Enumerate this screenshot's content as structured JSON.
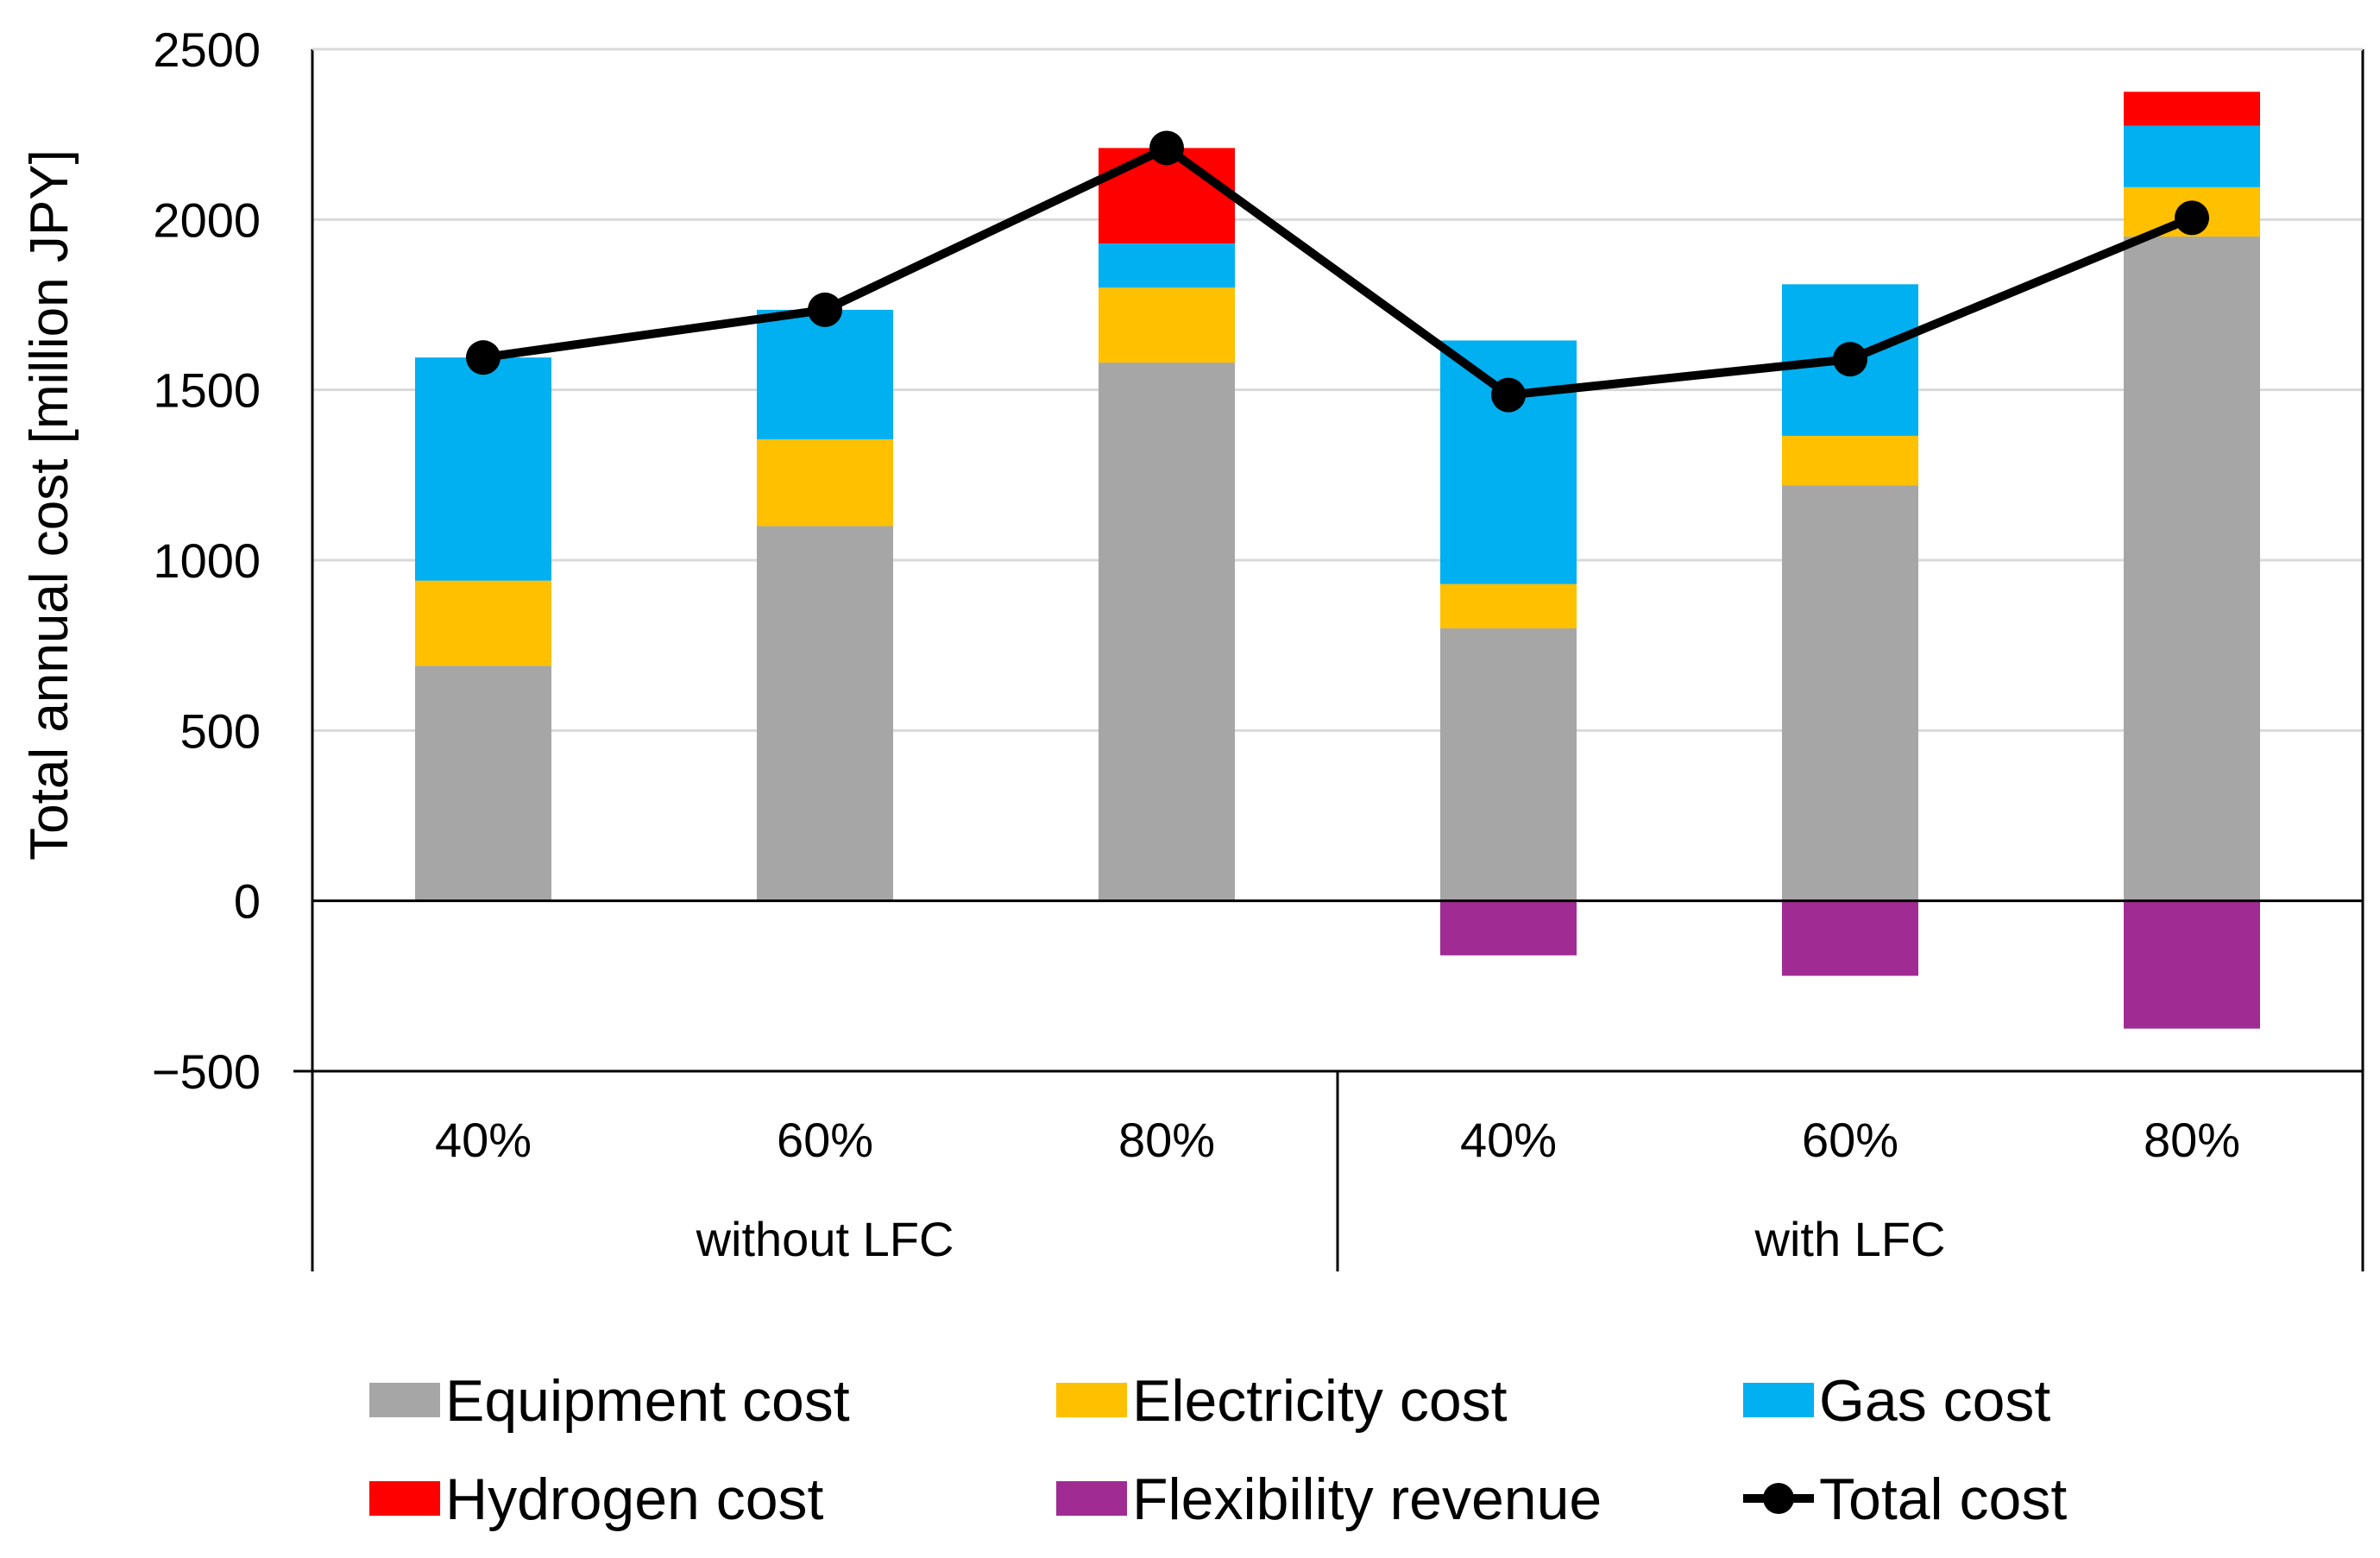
{
  "chart_data": {
    "type": "bar",
    "subtype": "stacked-bar-with-line",
    "title": "",
    "ylabel": "Total annual cost [million JPY]",
    "xlabel": "",
    "ylim": [
      -500,
      2500
    ],
    "yticks": [
      -500,
      0,
      500,
      1000,
      1500,
      2000,
      2500
    ],
    "ytick_labels": [
      "−500",
      "0",
      "500",
      "1000",
      "1500",
      "2000",
      "2500"
    ],
    "grid": true,
    "categories": [
      "40%",
      "60%",
      "80%",
      "40%",
      "60%",
      "80%"
    ],
    "groups": [
      {
        "label": "without LFC",
        "categories": [
          0,
          1,
          2
        ]
      },
      {
        "label": "with LFC",
        "categories": [
          3,
          4,
          5
        ]
      }
    ],
    "series": [
      {
        "name": "Equipment cost",
        "key": "equipment",
        "color": "#A6A6A6",
        "values": [
          690,
          1100,
          1580,
          800,
          1220,
          1950
        ]
      },
      {
        "name": "Electricity cost",
        "key": "electricity",
        "color": "#FFC000",
        "values": [
          250,
          255,
          220,
          130,
          145,
          145
        ]
      },
      {
        "name": "Gas cost",
        "key": "gas",
        "color": "#00B0F0",
        "values": [
          655,
          380,
          130,
          715,
          445,
          180
        ]
      },
      {
        "name": "Hydrogen cost",
        "key": "hydrogen",
        "color": "#FF0000",
        "values": [
          0,
          0,
          280,
          0,
          0,
          100
        ]
      },
      {
        "name": "Flexibility revenue",
        "key": "flexibility",
        "color": "#A02B93",
        "values": [
          0,
          0,
          0,
          -160,
          -220,
          -375
        ]
      }
    ],
    "line_series": {
      "name": "Total cost",
      "key": "total",
      "color": "#000000",
      "values": [
        1595,
        1735,
        2210,
        1485,
        1590,
        2005
      ]
    },
    "legend": {
      "position": "bottom",
      "entries": [
        {
          "label": "Equipment cost",
          "kind": "box",
          "color": "#A6A6A6"
        },
        {
          "label": "Electricity cost",
          "kind": "box",
          "color": "#FFC000"
        },
        {
          "label": "Gas cost",
          "kind": "box",
          "color": "#00B0F0"
        },
        {
          "label": "Hydrogen cost",
          "kind": "box",
          "color": "#FF0000"
        },
        {
          "label": "Flexibility revenue",
          "kind": "box",
          "color": "#A02B93"
        },
        {
          "label": "Total cost",
          "kind": "line-marker",
          "color": "#000000"
        }
      ]
    }
  }
}
